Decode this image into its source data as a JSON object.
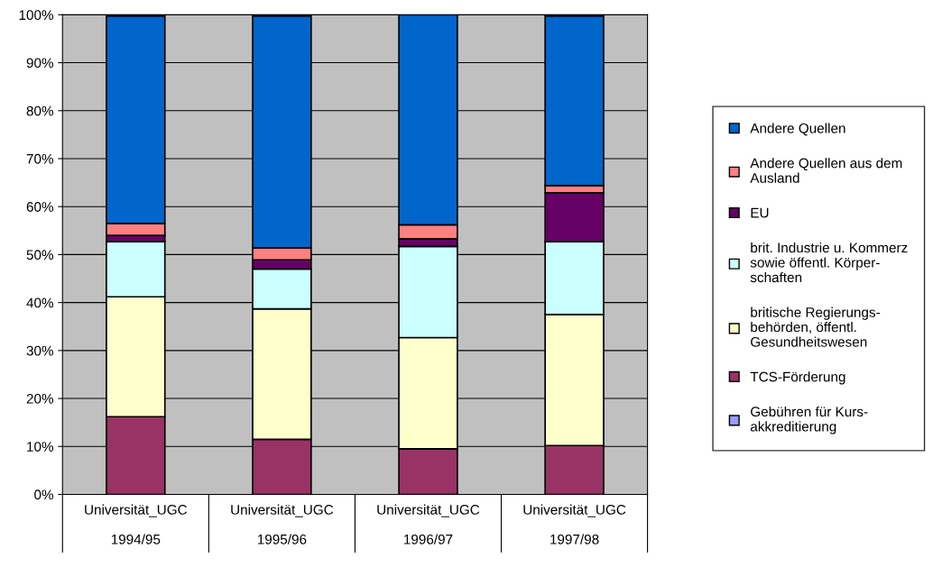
{
  "chart_data": {
    "type": "bar",
    "stacked": true,
    "categories": [
      "Universität_UGC\n\n1994/95",
      "Universität_UGC\n\n1995/96",
      "Universität_UGC\n\n1996/97",
      "Universität_UGC\n\n1997/98"
    ],
    "series": [
      {
        "name": "Gebühren für Kurs-\nakkreditierung",
        "color": "#9999ff",
        "values": [
          null,
          null,
          null,
          null
        ]
      },
      {
        "name": "TCS-Förderung",
        "color": "#993366",
        "values": [
          16.2,
          11.5,
          9.5,
          10.2
        ]
      },
      {
        "name": "britische Regierungs-\nbehörden, öffentl.\nGesundheitswesen",
        "color": "#ffffcc",
        "values": [
          25,
          27.2,
          23.2,
          27.3
        ]
      },
      {
        "name": "brit. Industrie u. Kommerz\nsowie öffentl. Körper-\nschaften",
        "color": "#ccffff",
        "values": [
          11.5,
          8.3,
          19,
          15.2
        ]
      },
      {
        "name": "EU",
        "color": "#660066",
        "values": [
          1.3,
          1.9,
          1.6,
          10.2
        ]
      },
      {
        "name": "Andere Quellen aus dem\nAusland",
        "color": "#ff8080",
        "values": [
          2.5,
          2.5,
          2.9,
          1.5
        ]
      },
      {
        "name": "Andere Quellen",
        "color": "#0066cc",
        "values": [
          43.2,
          48.3,
          43.8,
          35.3
        ]
      }
    ],
    "ylim": [
      0,
      100
    ],
    "yticks": [
      {
        "value": 0,
        "label": "0%"
      },
      {
        "value": 10,
        "label": "10%"
      },
      {
        "value": 20,
        "label": "20%"
      },
      {
        "value": 30,
        "label": "30%"
      },
      {
        "value": 40,
        "label": "40%"
      },
      {
        "value": 50,
        "label": "50%"
      },
      {
        "value": 60,
        "label": "60%"
      },
      {
        "value": 70,
        "label": "70%"
      },
      {
        "value": 80,
        "label": "80%"
      },
      {
        "value": 90,
        "label": "90%"
      },
      {
        "value": 100,
        "label": "100%"
      }
    ],
    "grid": "y",
    "legend": "right"
  }
}
